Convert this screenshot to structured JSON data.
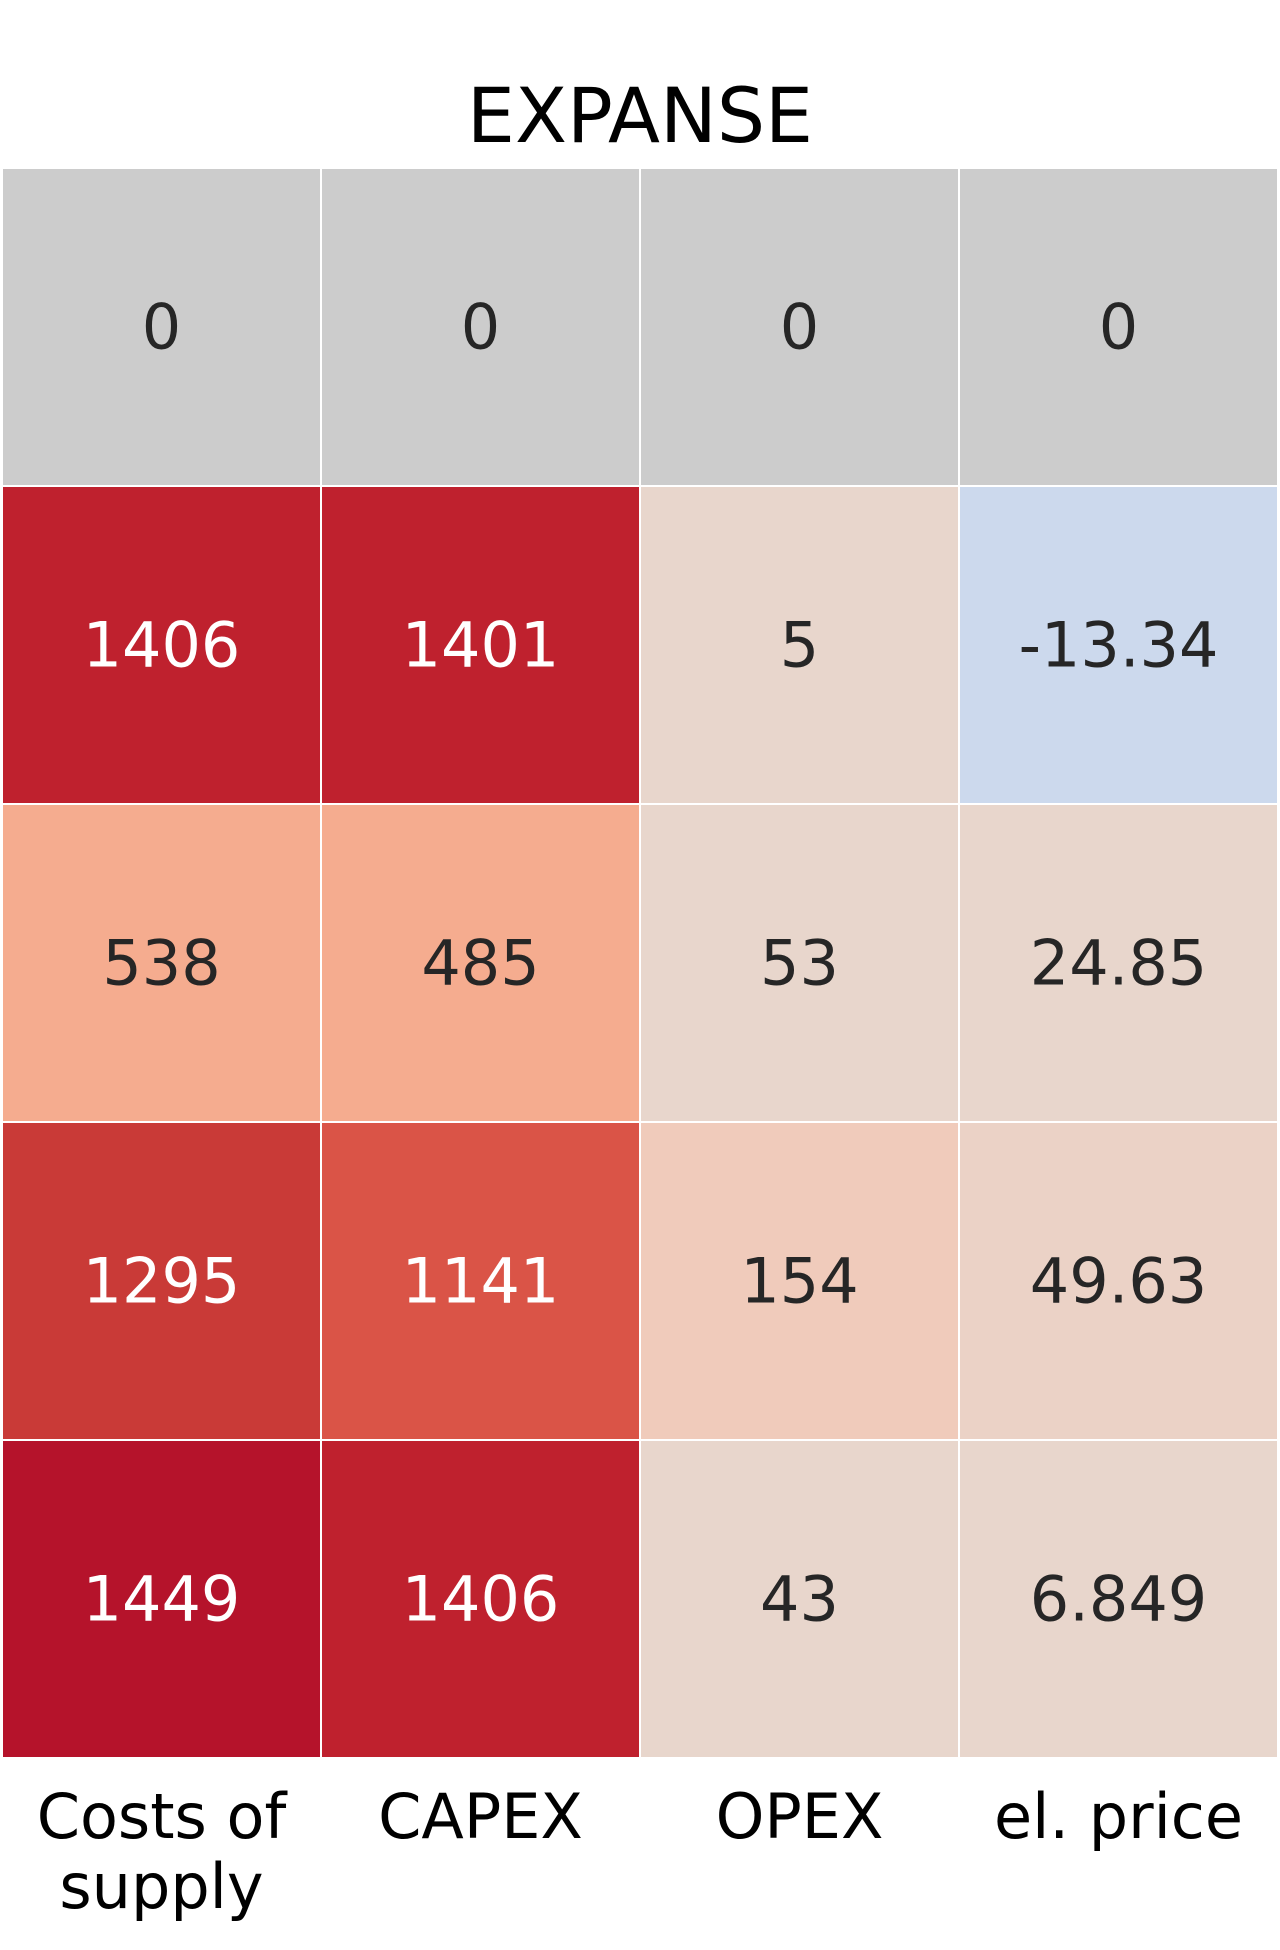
{
  "chart_data": {
    "type": "heatmap",
    "title": "EXPANSE",
    "xlabel": "",
    "ylabel": "",
    "x_tick_labels": [
      [
        "Costs of",
        "supply"
      ],
      [
        "CAPEX"
      ],
      [
        "OPEX"
      ],
      [
        "el. price"
      ]
    ],
    "y_tick_labels": [],
    "values": [
      [
        0,
        0,
        0,
        0
      ],
      [
        1406,
        1401,
        5,
        -13.34
      ],
      [
        538,
        485,
        53,
        24.85
      ],
      [
        1295,
        1141,
        154,
        49.63
      ],
      [
        1449,
        1406,
        43,
        6.849
      ]
    ],
    "cell_labels": [
      [
        "0",
        "0",
        "0",
        "0"
      ],
      [
        "1406",
        "1401",
        "5",
        "-13.34"
      ],
      [
        "538",
        "485",
        "53",
        "24.85"
      ],
      [
        "1295",
        "1141",
        "154",
        "49.63"
      ],
      [
        "1449",
        "1406",
        "43",
        "6.849"
      ]
    ],
    "cell_colors": [
      [
        "#cccccc",
        "#cccccc",
        "#cccccc",
        "#cccccc"
      ],
      [
        "#bf212e",
        "#bf212e",
        "#e8d6cc",
        "#ccd9ed"
      ],
      [
        "#f5ac8f",
        "#f5ac8f",
        "#e8d6cc",
        "#e8d6cc"
      ],
      [
        "#c93a37",
        "#da5447",
        "#f0cbbb",
        "#ebd2c6"
      ],
      [
        "#b5132b",
        "#bf212e",
        "#e8d6cc",
        "#e8d6cc"
      ]
    ],
    "label_colors": {
      "light": "#ffffff",
      "dark": "#262626"
    },
    "dark_text_cells": [
      [
        0,
        0
      ],
      [
        0,
        1
      ],
      [
        0,
        2
      ],
      [
        0,
        3
      ],
      [
        1,
        2
      ],
      [
        1,
        3
      ],
      [
        2,
        0
      ],
      [
        2,
        1
      ],
      [
        2,
        2
      ],
      [
        2,
        3
      ],
      [
        3,
        2
      ],
      [
        3,
        3
      ],
      [
        4,
        2
      ],
      [
        4,
        3
      ]
    ],
    "grid_line_color": "#ffffff",
    "colorbar": false
  }
}
